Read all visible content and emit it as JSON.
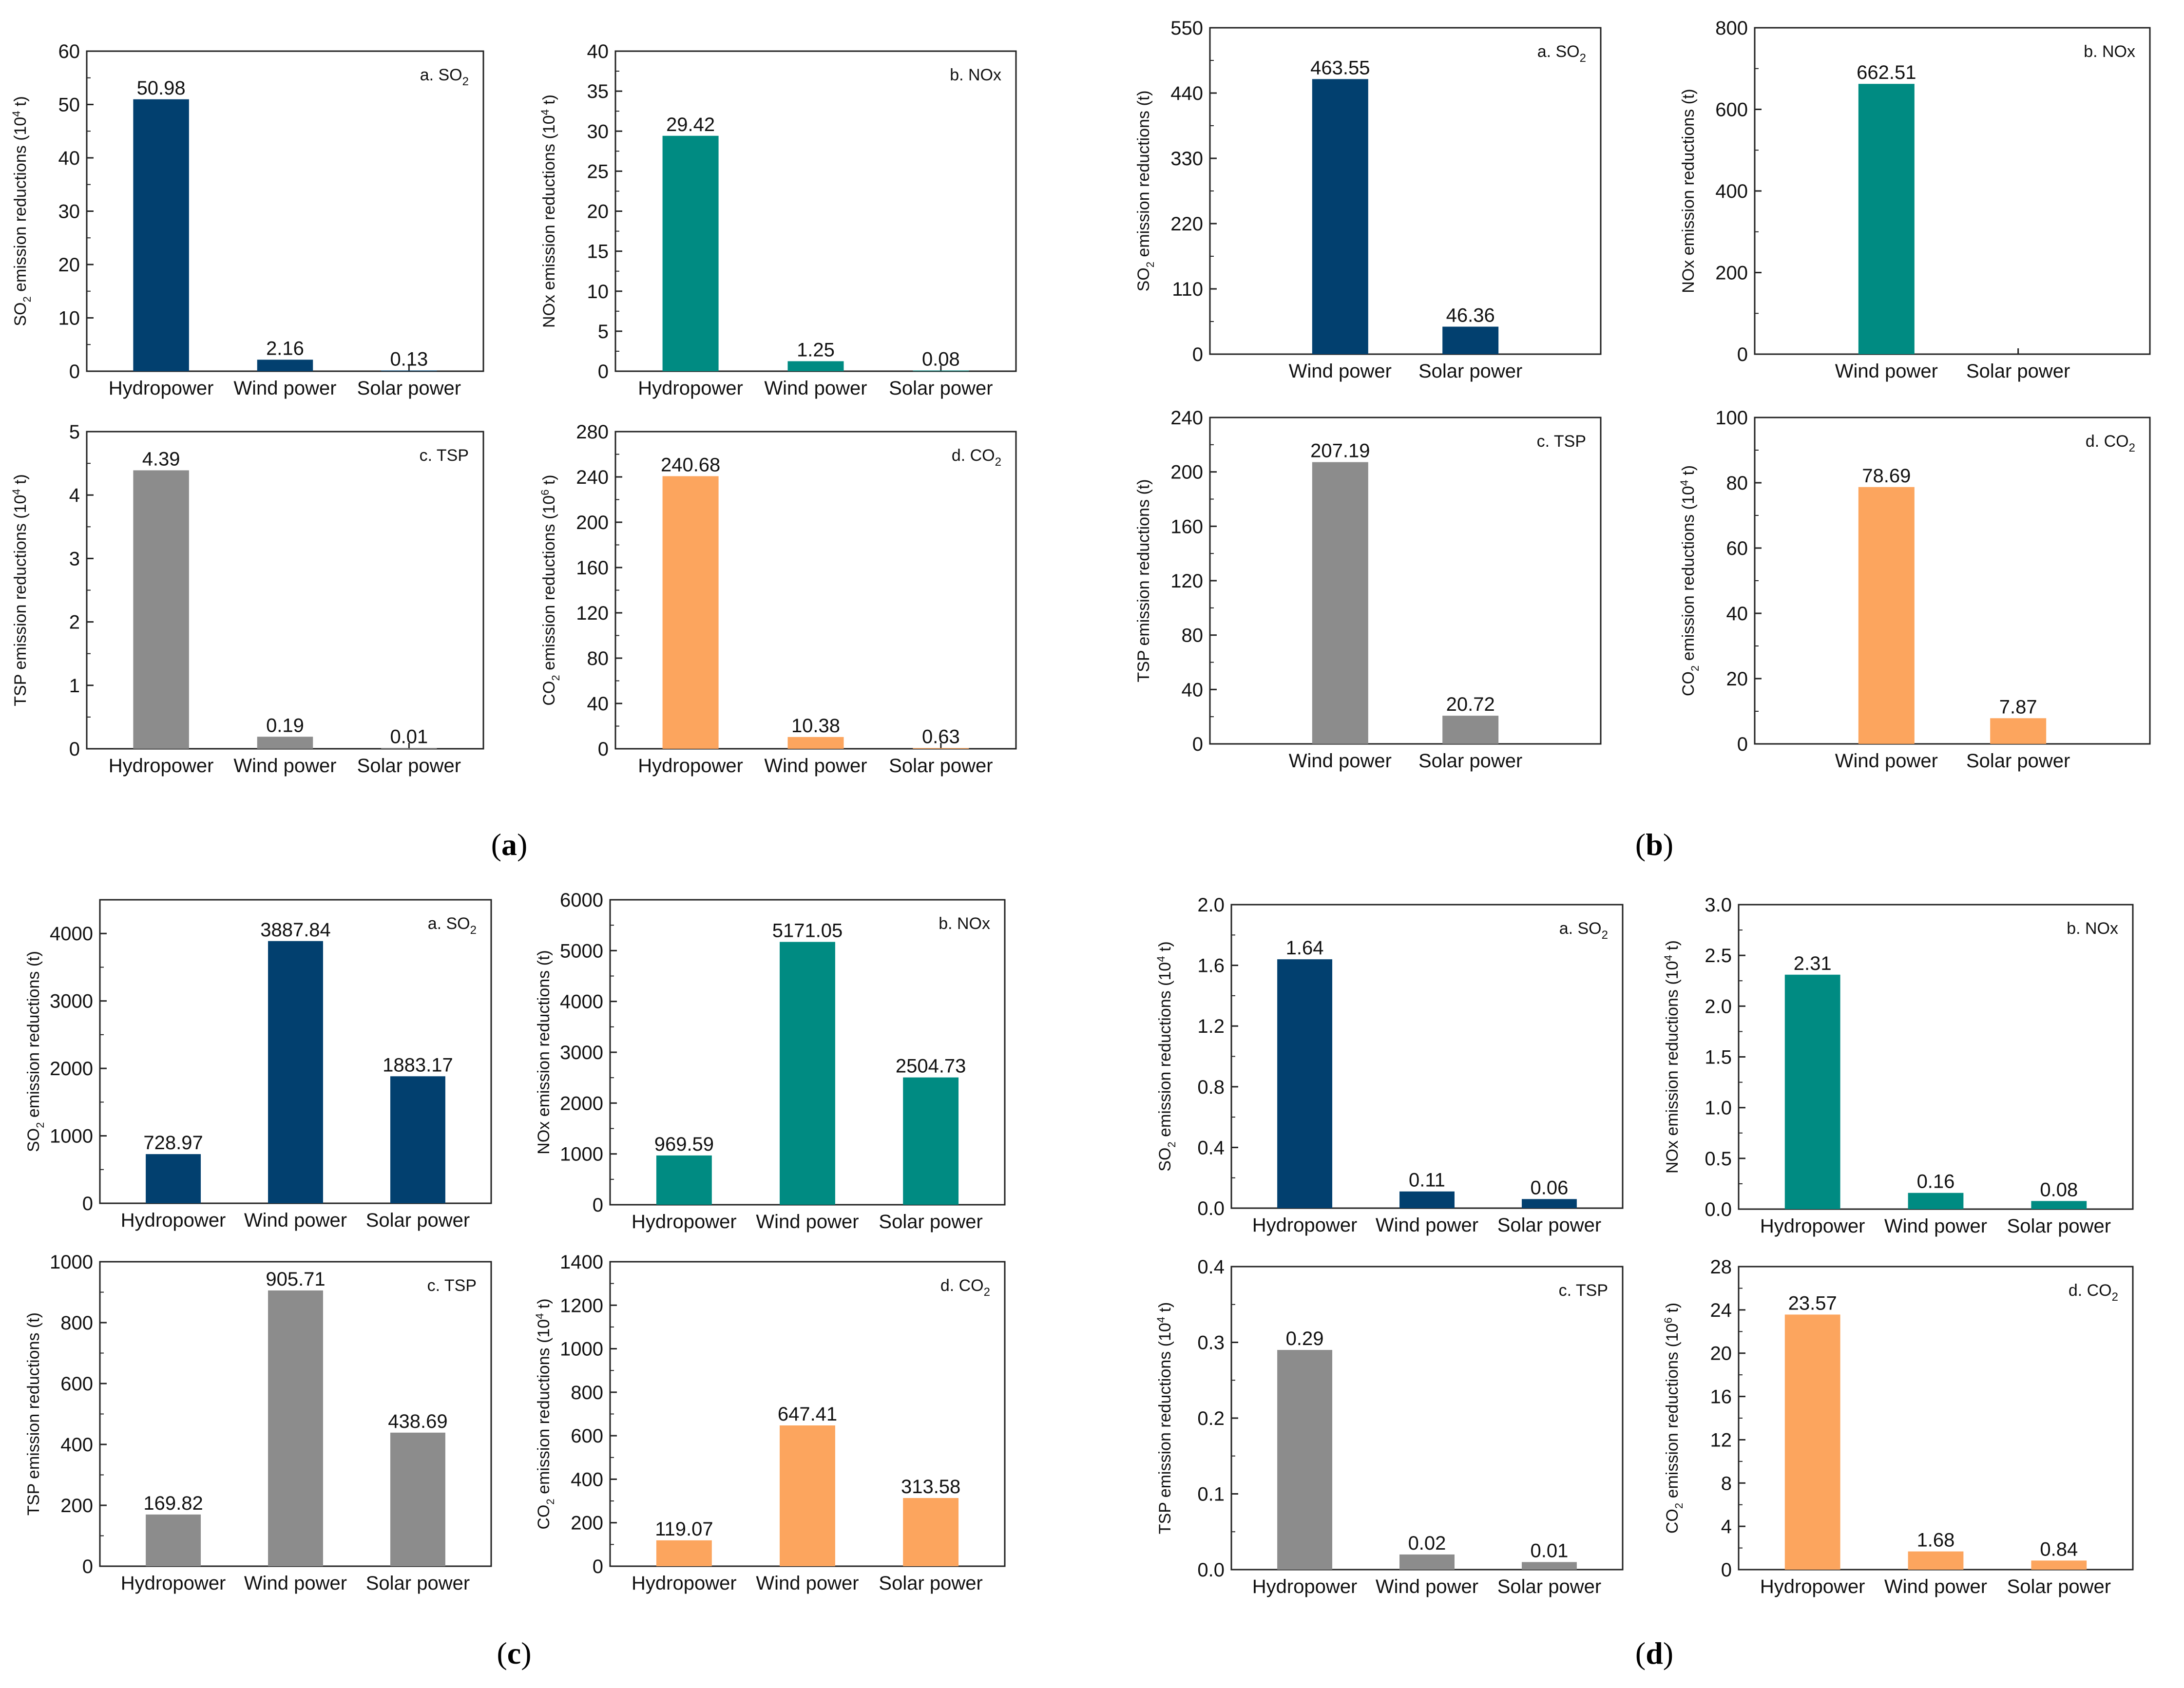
{
  "colors": {
    "SO2": "#02406f",
    "NOx": "#008b82",
    "TSP": "#8c8c8c",
    "CO2": "#fca55e"
  },
  "groups": [
    {
      "open": "(",
      "letter": "a",
      "close": ")"
    },
    {
      "open": "(",
      "letter": "b",
      "close": ")"
    },
    {
      "open": "(",
      "letter": "c",
      "close": ")"
    },
    {
      "open": "(",
      "letter": "d",
      "close": ")"
    }
  ],
  "chart_data": [
    {
      "group": "a",
      "type": "bar",
      "pollutant": "SO2",
      "panel": "a.",
      "label": "SO",
      "sub": "2",
      "ylabel": [
        "SO",
        "2",
        " emission reductions (10",
        "4",
        " t)"
      ],
      "categories": [
        "Hydropower",
        "Wind power",
        "Solar power"
      ],
      "values": [
        50.98,
        2.16,
        0.13
      ],
      "value_labels": [
        "50.98",
        "2.16",
        "0.13"
      ],
      "ylim": [
        0,
        60
      ],
      "ticks": [
        0,
        10,
        20,
        30,
        40,
        50,
        60
      ],
      "tick_labels": [
        "0",
        "10",
        "20",
        "30",
        "40",
        "50",
        "60"
      ]
    },
    {
      "group": "a",
      "type": "bar",
      "pollutant": "NOx",
      "panel": "b.",
      "label": "NOx",
      "sub": "",
      "ylabel": [
        "NOx emission reductions (10",
        "4",
        " t)"
      ],
      "categories": [
        "Hydropower",
        "Wind power",
        "Solar power"
      ],
      "values": [
        29.42,
        1.25,
        0.08
      ],
      "value_labels": [
        "29.42",
        "1.25",
        "0.08"
      ],
      "ylim": [
        0,
        40
      ],
      "ticks": [
        0,
        5,
        10,
        15,
        20,
        25,
        30,
        35,
        40
      ],
      "tick_labels": [
        "0",
        "5",
        "10",
        "15",
        "20",
        "25",
        "30",
        "35",
        "40"
      ]
    },
    {
      "group": "a",
      "type": "bar",
      "pollutant": "TSP",
      "panel": "c.",
      "label": "TSP",
      "sub": "",
      "ylabel": [
        "TSP emission reductions (10",
        "4",
        " t)"
      ],
      "categories": [
        "Hydropower",
        "Wind power",
        "Solar power"
      ],
      "values": [
        4.39,
        0.19,
        0.01
      ],
      "value_labels": [
        "4.39",
        "0.19",
        "0.01"
      ],
      "ylim": [
        0,
        5
      ],
      "ticks": [
        0,
        1,
        2,
        3,
        4,
        5
      ],
      "tick_labels": [
        "0",
        "1",
        "2",
        "3",
        "4",
        "5"
      ]
    },
    {
      "group": "a",
      "type": "bar",
      "pollutant": "CO2",
      "panel": "d.",
      "label": "CO",
      "sub": "2",
      "ylabel": [
        "CO",
        "2",
        " emission reductions (10",
        "6",
        " t)"
      ],
      "categories": [
        "Hydropower",
        "Wind power",
        "Solar power"
      ],
      "values": [
        240.68,
        10.38,
        0.63
      ],
      "value_labels": [
        "240.68",
        "10.38",
        "0.63"
      ],
      "ylim": [
        0,
        280
      ],
      "ticks": [
        0,
        40,
        80,
        120,
        160,
        200,
        240,
        280
      ],
      "tick_labels": [
        "0",
        "40",
        "80",
        "120",
        "160",
        "200",
        "240",
        "280"
      ]
    },
    {
      "group": "b",
      "type": "bar",
      "pollutant": "SO2",
      "panel": "a.",
      "label": "SO",
      "sub": "2",
      "ylabel": [
        "SO",
        "2",
        " emission reductions (t)"
      ],
      "categories": [
        "Wind power",
        "Solar power"
      ],
      "values": [
        463.55,
        46.36
      ],
      "value_labels": [
        "463.55",
        "46.36"
      ],
      "ylim": [
        0,
        550
      ],
      "ticks": [
        0,
        110,
        220,
        330,
        440,
        550
      ],
      "tick_labels": [
        "0",
        "110",
        "220",
        "330",
        "440",
        "550"
      ]
    },
    {
      "group": "b",
      "type": "bar",
      "pollutant": "NOx",
      "panel": "b.",
      "label": "NOx",
      "sub": "",
      "ylabel": [
        "NOx emission reductions (t)"
      ],
      "categories": [
        "Wind power",
        "Solar power"
      ],
      "values": [
        662.51,
        0
      ],
      "value_labels": [
        "662.51",
        ""
      ],
      "ylim": [
        0,
        800
      ],
      "ticks": [
        0,
        200,
        400,
        600,
        800
      ],
      "tick_labels": [
        "0",
        "200",
        "400",
        "600",
        "800"
      ]
    },
    {
      "group": "b",
      "type": "bar",
      "pollutant": "TSP",
      "panel": "c.",
      "label": "TSP",
      "sub": "",
      "ylabel": [
        "TSP emission reductions (t)"
      ],
      "categories": [
        "Wind power",
        "Solar power"
      ],
      "values": [
        207.19,
        20.72
      ],
      "value_labels": [
        "207.19",
        "20.72"
      ],
      "ylim": [
        0,
        240
      ],
      "ticks": [
        0,
        40,
        80,
        120,
        160,
        200,
        240
      ],
      "tick_labels": [
        "0",
        "40",
        "80",
        "120",
        "160",
        "200",
        "240"
      ]
    },
    {
      "group": "b",
      "type": "bar",
      "pollutant": "CO2",
      "panel": "d.",
      "label": "CO",
      "sub": "2",
      "ylabel": [
        "CO",
        "2",
        " emission reductions (10",
        "4",
        " t)"
      ],
      "categories": [
        "Wind power",
        "Solar power"
      ],
      "values": [
        78.69,
        7.87
      ],
      "value_labels": [
        "78.69",
        "7.87"
      ],
      "ylim": [
        0,
        100
      ],
      "ticks": [
        0,
        20,
        40,
        60,
        80,
        100
      ],
      "tick_labels": [
        "0",
        "20",
        "40",
        "60",
        "80",
        "100"
      ]
    },
    {
      "group": "c",
      "type": "bar",
      "pollutant": "SO2",
      "panel": "a.",
      "label": "SO",
      "sub": "2",
      "ylabel": [
        "SO",
        "2",
        " emission reductions (t)"
      ],
      "categories": [
        "Hydropower",
        "Wind power",
        "Solar power"
      ],
      "values": [
        728.97,
        3887.84,
        1883.17
      ],
      "value_labels": [
        "728.97",
        "3887.84",
        "1883.17"
      ],
      "ylim": [
        0,
        4500
      ],
      "ticks": [
        0,
        1000,
        2000,
        3000,
        4000
      ],
      "tick_labels": [
        "0",
        "1000",
        "2000",
        "3000",
        "4000"
      ]
    },
    {
      "group": "c",
      "type": "bar",
      "pollutant": "NOx",
      "panel": "b.",
      "label": "NOx",
      "sub": "",
      "ylabel": [
        "NOx emission reductions (t)"
      ],
      "categories": [
        "Hydropower",
        "Wind power",
        "Solar power"
      ],
      "values": [
        969.59,
        5171.05,
        2504.73
      ],
      "value_labels": [
        "969.59",
        "5171.05",
        "2504.73"
      ],
      "ylim": [
        0,
        6000
      ],
      "ticks": [
        0,
        1000,
        2000,
        3000,
        4000,
        5000,
        6000
      ],
      "tick_labels": [
        "0",
        "1000",
        "2000",
        "3000",
        "4000",
        "5000",
        "6000"
      ]
    },
    {
      "group": "c",
      "type": "bar",
      "pollutant": "TSP",
      "panel": "c.",
      "label": "TSP",
      "sub": "",
      "ylabel": [
        "TSP emission reductions (t)"
      ],
      "categories": [
        "Hydropower",
        "Wind power",
        "Solar power"
      ],
      "values": [
        169.82,
        905.71,
        438.69
      ],
      "value_labels": [
        "169.82",
        "905.71",
        "438.69"
      ],
      "ylim": [
        0,
        1000
      ],
      "ticks": [
        0,
        200,
        400,
        600,
        800,
        1000
      ],
      "tick_labels": [
        "0",
        "200",
        "400",
        "600",
        "800",
        "1000"
      ]
    },
    {
      "group": "c",
      "type": "bar",
      "pollutant": "CO2",
      "panel": "d.",
      "label": "CO",
      "sub": "2",
      "ylabel": [
        "CO",
        "2",
        " emission reductions (10",
        "4",
        " t)"
      ],
      "categories": [
        "Hydropower",
        "Wind power",
        "Solar power"
      ],
      "values": [
        119.07,
        647.41,
        313.58
      ],
      "value_labels": [
        "119.07",
        "647.41",
        "313.58"
      ],
      "ylim": [
        0,
        1400
      ],
      "ticks": [
        0,
        200,
        400,
        600,
        800,
        1000,
        1200,
        1400
      ],
      "tick_labels": [
        "0",
        "200",
        "400",
        "600",
        "800",
        "1000",
        "1200",
        "1400"
      ]
    },
    {
      "group": "d",
      "type": "bar",
      "pollutant": "SO2",
      "panel": "a.",
      "label": "SO",
      "sub": "2",
      "ylabel": [
        "SO",
        "2",
        " emission reductions (10",
        "4",
        " t)"
      ],
      "categories": [
        "Hydropower",
        "Wind power",
        "Solar power"
      ],
      "values": [
        1.64,
        0.11,
        0.06
      ],
      "value_labels": [
        "1.64",
        "0.11",
        "0.06"
      ],
      "ylim": [
        0,
        2.0
      ],
      "ticks": [
        0,
        0.4,
        0.8,
        1.2,
        1.6,
        2.0
      ],
      "tick_labels": [
        "0.0",
        "0.4",
        "0.8",
        "1.2",
        "1.6",
        "2.0"
      ]
    },
    {
      "group": "d",
      "type": "bar",
      "pollutant": "NOx",
      "panel": "b.",
      "label": "NOx",
      "sub": "",
      "ylabel": [
        "NOx emission reductions (10",
        "4",
        " t)"
      ],
      "categories": [
        "Hydropower",
        "Wind power",
        "Solar power"
      ],
      "values": [
        2.31,
        0.16,
        0.08
      ],
      "value_labels": [
        "2.31",
        "0.16",
        "0.08"
      ],
      "ylim": [
        0,
        3.0
      ],
      "ticks": [
        0,
        0.5,
        1.0,
        1.5,
        2.0,
        2.5,
        3.0
      ],
      "tick_labels": [
        "0.0",
        "0.5",
        "1.0",
        "1.5",
        "2.0",
        "2.5",
        "3.0"
      ]
    },
    {
      "group": "d",
      "type": "bar",
      "pollutant": "TSP",
      "panel": "c.",
      "label": "TSP",
      "sub": "",
      "ylabel": [
        "TSP emission reductions (10",
        "4",
        " t)"
      ],
      "categories": [
        "Hydropower",
        "Wind power",
        "Solar power"
      ],
      "values": [
        0.29,
        0.02,
        0.01
      ],
      "value_labels": [
        "0.29",
        "0.02",
        "0.01"
      ],
      "ylim": [
        0,
        0.4
      ],
      "ticks": [
        0,
        0.1,
        0.2,
        0.3,
        0.4
      ],
      "tick_labels": [
        "0.0",
        "0.1",
        "0.2",
        "0.3",
        "0.4"
      ]
    },
    {
      "group": "d",
      "type": "bar",
      "pollutant": "CO2",
      "panel": "d.",
      "label": "CO",
      "sub": "2",
      "ylabel": [
        "CO",
        "2",
        " emission reductions (10",
        "6",
        " t)"
      ],
      "categories": [
        "Hydropower",
        "Wind power",
        "Solar power"
      ],
      "values": [
        23.57,
        1.68,
        0.84
      ],
      "value_labels": [
        "23.57",
        "1.68",
        "0.84"
      ],
      "ylim": [
        0,
        28
      ],
      "ticks": [
        0,
        4,
        8,
        12,
        16,
        20,
        24,
        28
      ],
      "tick_labels": [
        "0",
        "4",
        "8",
        "12",
        "16",
        "20",
        "24",
        "28"
      ]
    }
  ]
}
